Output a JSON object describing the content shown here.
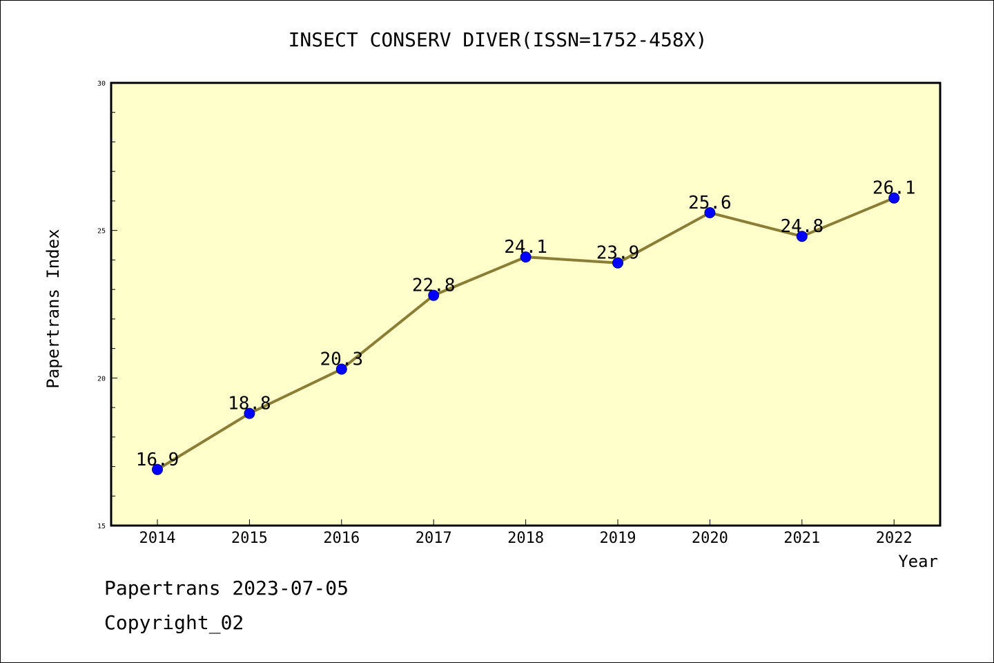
{
  "chart_data": {
    "type": "line",
    "title": "INSECT CONSERV DIVER(ISSN=1752-458X)",
    "xlabel": "Year",
    "ylabel": "Papertrans Index",
    "categories": [
      "2014",
      "2015",
      "2016",
      "2017",
      "2018",
      "2019",
      "2020",
      "2021",
      "2022"
    ],
    "values": [
      16.9,
      18.8,
      20.3,
      22.8,
      24.1,
      23.9,
      25.6,
      24.8,
      26.1
    ],
    "data_labels": [
      "16.9",
      "18.8",
      "20.3",
      "22.8",
      "24.1",
      "23.9",
      "25.6",
      "24.8",
      "26.1"
    ],
    "ylim": [
      15,
      30
    ],
    "yticks": [
      "15",
      "20",
      "25",
      "30"
    ],
    "grid": false,
    "colors": {
      "plot_background": "#ffffcc",
      "line": "#8b7d35",
      "marker": "#0000ff",
      "marker_edge": "#00008b",
      "axes": "#000000"
    }
  },
  "footer": {
    "line1": "Papertrans 2023-07-05",
    "line2": "Copyright_02"
  }
}
